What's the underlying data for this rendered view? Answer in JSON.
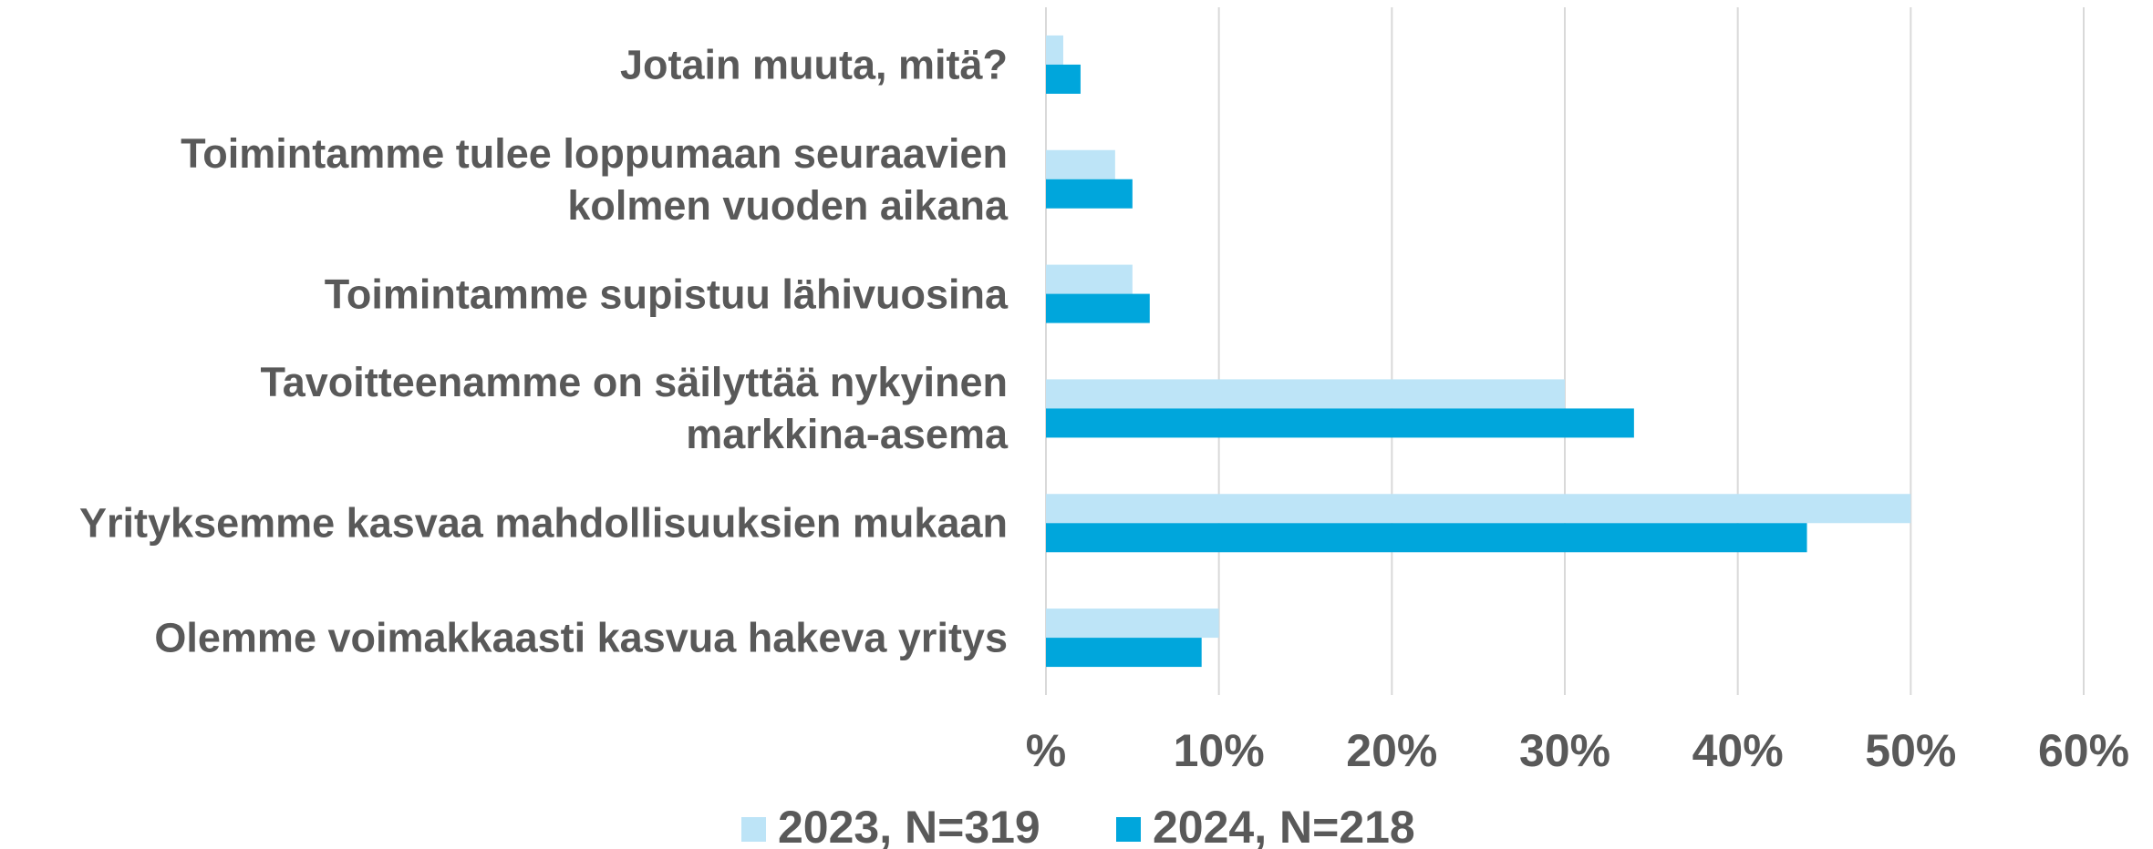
{
  "chart_data": {
    "type": "barh",
    "categories": [
      "Jotain muuta, mitä?",
      "Toimintamme tulee loppumaan seuraavien\nkolmen vuoden aikana",
      "Toimintamme supistuu lähivuosina",
      "Tavoitteenamme on säilyttää nykyinen\nmarkkina-asema",
      "Yrityksemme kasvaa mahdollisuuksien mukaan",
      "Olemme voimakkaasti kasvua hakeva yritys"
    ],
    "series": [
      {
        "name": "2023, N=319",
        "color": "#bde4f7",
        "values": [
          1,
          4,
          5,
          30,
          50,
          10
        ]
      },
      {
        "name": "2024, N=218",
        "color": "#00a6dc",
        "values": [
          2,
          5,
          6,
          34,
          44,
          9
        ]
      }
    ],
    "xlim": [
      0,
      60
    ],
    "xticks": [
      {
        "value": 0,
        "label": "%"
      },
      {
        "value": 10,
        "label": "10%"
      },
      {
        "value": 20,
        "label": "20%"
      },
      {
        "value": 30,
        "label": "30%"
      },
      {
        "value": 40,
        "label": "40%"
      },
      {
        "value": 50,
        "label": "50%"
      },
      {
        "value": 60,
        "label": "60%"
      }
    ],
    "grid": true,
    "legend": "bottom"
  }
}
